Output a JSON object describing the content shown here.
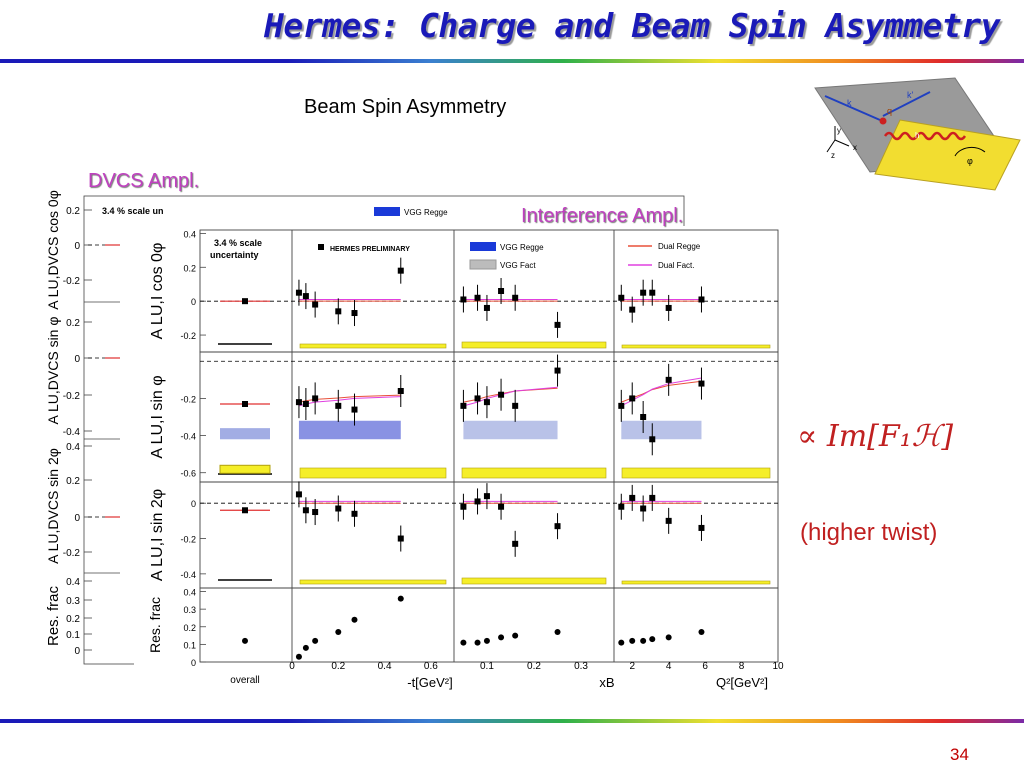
{
  "slide": {
    "title": "Hermes: Charge and Beam Spin Asymmetry",
    "subtitle": "Beam Spin Asymmetry",
    "dvcs_label": "DVCS Ampl.",
    "interference_label": "Interference Ampl.",
    "formula": "∝ Im[F₁ℋ]",
    "higher_twist": "(higher twist)",
    "page_number": "34",
    "accent_color": "#1a1ab8",
    "label_color": "#c040c0"
  },
  "diagram": {
    "labels": [
      "k",
      "k'",
      "q",
      "y",
      "x",
      "z",
      "φ",
      "h"
    ]
  },
  "chart_data": [
    {
      "type": "scatter",
      "name": "back-panel",
      "scale_note": "3.4 % scale un",
      "rows": [
        {
          "label": "A LU,DVCS cos 0φ",
          "ticks": [
            "0.2",
            "0",
            "-0.2"
          ]
        },
        {
          "label": "A LU,DVCS sin φ",
          "ticks": [
            "0.2",
            "0",
            "-0.2",
            "-0.4"
          ]
        },
        {
          "label": "A LU,DVCS sin 2φ",
          "ticks": [
            "0.4",
            "0.2",
            "0",
            "-0.2"
          ]
        },
        {
          "label": "Res. frac",
          "ticks": [
            "0.4",
            "0.3",
            "0.2",
            "0.1",
            "0"
          ]
        }
      ],
      "legend": [
        "VGG Regge"
      ]
    },
    {
      "type": "scatter",
      "name": "front-panel",
      "scale_note": "3.4 % scale uncertainty",
      "preliminary": "HERMES PRELIMINARY",
      "legend": [
        {
          "name": "VGG Regge",
          "color": "#1a3ad8"
        },
        {
          "name": "VGG Fact",
          "color": "#bcbcbc"
        },
        {
          "name": "Dual Regge",
          "color": "#e8503a"
        },
        {
          "name": "Dual Fact.",
          "color": "#e040e0"
        }
      ],
      "columns": [
        {
          "label": "overall",
          "ticks": []
        },
        {
          "label": "-t[GeV²]",
          "ticks": [
            "0",
            "0.2",
            "0.4",
            "0.6"
          ],
          "xlim": [
            0,
            0.7
          ]
        },
        {
          "label": "xB",
          "ticks": [
            "0.1",
            "0.2",
            "0.3"
          ],
          "xlim": [
            0.03,
            0.37
          ]
        },
        {
          "label": "Q²[GeV²]",
          "ticks": [
            "2",
            "4",
            "6",
            "8",
            "10"
          ],
          "xlim": [
            1,
            10
          ]
        }
      ],
      "rows": [
        {
          "label": "A LU,I cos 0φ",
          "ticks": [
            "0.4",
            "0.2",
            "0",
            "-0.2"
          ],
          "ylim": [
            -0.3,
            0.42
          ],
          "overall": 0.0,
          "x": {
            "t": [
              0.03,
              0.06,
              0.1,
              0.2,
              0.27,
              0.47
            ],
            "xb": [
              0.05,
              0.08,
              0.1,
              0.13,
              0.16,
              0.25
            ],
            "q2": [
              1.4,
              2.0,
              2.6,
              3.1,
              4.0,
              5.8
            ]
          },
          "y": {
            "t": [
              0.05,
              0.03,
              -0.02,
              -0.06,
              -0.07,
              0.18
            ],
            "xb": [
              0.01,
              0.02,
              -0.04,
              0.06,
              0.02,
              -0.14
            ],
            "q2": [
              0.02,
              -0.05,
              0.05,
              0.05,
              -0.04,
              0.01
            ]
          }
        },
        {
          "label": "A LU,I sin φ",
          "ticks": [
            "-0.2",
            "-0.4",
            "-0.6"
          ],
          "ylim": [
            -0.65,
            0.05
          ],
          "overall": -0.23,
          "x": {
            "t": [
              0.03,
              0.06,
              0.1,
              0.2,
              0.27,
              0.47
            ],
            "xb": [
              0.05,
              0.08,
              0.1,
              0.13,
              0.16,
              0.25
            ],
            "q2": [
              1.4,
              2.0,
              2.6,
              3.1,
              4.0,
              5.8
            ]
          },
          "y": {
            "t": [
              -0.22,
              -0.23,
              -0.2,
              -0.24,
              -0.26,
              -0.16
            ],
            "xb": [
              -0.24,
              -0.2,
              -0.22,
              -0.18,
              -0.24,
              -0.05
            ],
            "q2": [
              -0.24,
              -0.2,
              -0.3,
              -0.42,
              -0.1,
              -0.12
            ]
          }
        },
        {
          "label": "A LU,I sin 2φ",
          "ticks": [
            "0",
            "-0.2",
            "-0.4"
          ],
          "ylim": [
            -0.48,
            0.12
          ],
          "overall": -0.04,
          "x": {
            "t": [
              0.03,
              0.06,
              0.1,
              0.2,
              0.27,
              0.47
            ],
            "xb": [
              0.05,
              0.08,
              0.1,
              0.13,
              0.16,
              0.25
            ],
            "q2": [
              1.4,
              2.0,
              2.6,
              3.1,
              4.0,
              5.8
            ]
          },
          "y": {
            "t": [
              0.05,
              -0.04,
              -0.05,
              -0.03,
              -0.06,
              -0.2
            ],
            "xb": [
              -0.02,
              0.01,
              0.04,
              -0.02,
              -0.23,
              -0.13
            ],
            "q2": [
              -0.02,
              0.03,
              -0.03,
              0.03,
              -0.1,
              -0.14
            ]
          }
        },
        {
          "label": "Res. frac",
          "ticks": [
            "0.4",
            "0.3",
            "0.2",
            "0.1",
            "0"
          ],
          "ylim": [
            0,
            0.42
          ],
          "overall": 0.12,
          "x": {
            "t": [
              0.03,
              0.06,
              0.1,
              0.2,
              0.27,
              0.47
            ],
            "xb": [
              0.05,
              0.08,
              0.1,
              0.13,
              0.16,
              0.25
            ],
            "q2": [
              1.4,
              2.0,
              2.6,
              3.1,
              4.0,
              5.8
            ]
          },
          "y": {
            "t": [
              0.03,
              0.08,
              0.12,
              0.17,
              0.24,
              0.36
            ],
            "xb": [
              0.11,
              0.11,
              0.12,
              0.14,
              0.15,
              0.17
            ],
            "q2": [
              0.11,
              0.12,
              0.12,
              0.13,
              0.14,
              0.17
            ]
          }
        }
      ]
    }
  ]
}
